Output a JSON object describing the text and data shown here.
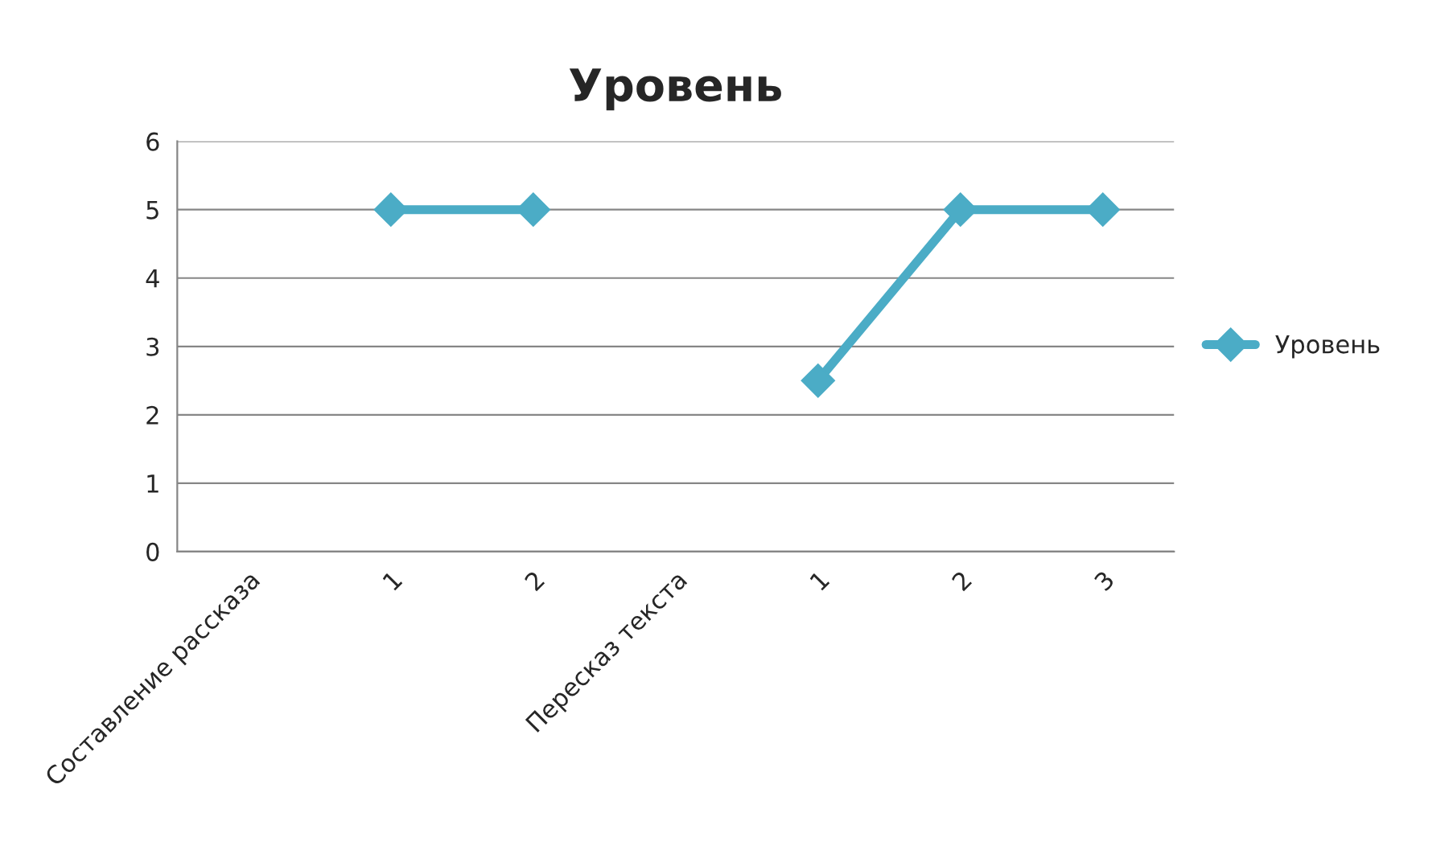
{
  "chart_data": {
    "type": "line",
    "title": "Уровень",
    "categories": [
      "Составление рассказа",
      "1",
      "2",
      "Пересказ текста",
      "1",
      "2",
      "3"
    ],
    "series": [
      {
        "name": "Уровень",
        "color": "#4bacc6",
        "values": [
          null,
          5,
          5,
          null,
          2.5,
          5,
          5
        ]
      }
    ],
    "ylim": [
      0,
      6
    ],
    "yticks": [
      0,
      1,
      2,
      3,
      4,
      5,
      6
    ],
    "grid": "y",
    "legend": "right",
    "marker": "diamond",
    "line_style": "solid"
  }
}
